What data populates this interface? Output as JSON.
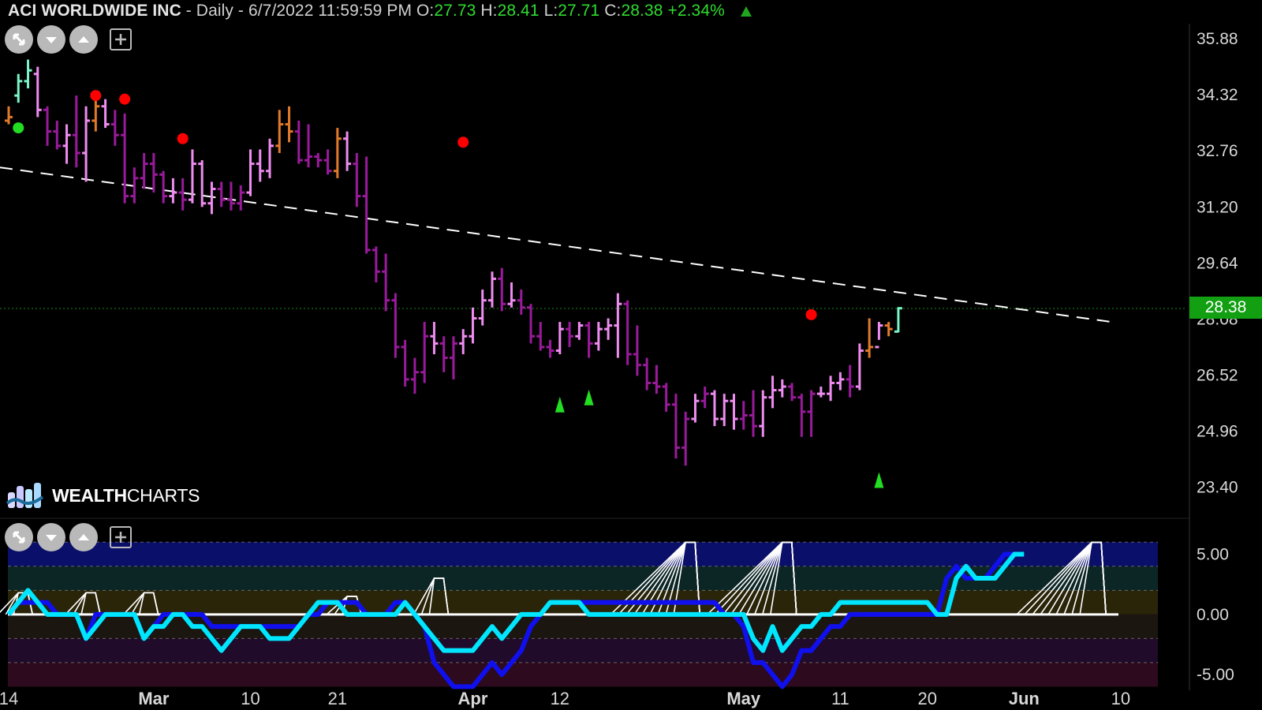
{
  "header": {
    "symbol": "ACI WORLDWIDE INC",
    "interval": "- Daily - 6/7/2022 11:59:59 PM",
    "open_label": "O:",
    "open": "27.73",
    "high_label": "H:",
    "high": "28.41",
    "low_label": "L:",
    "low": "27.71",
    "close_label": "C:",
    "close": "28.38",
    "change": "+2.34%"
  },
  "logo": {
    "text_bold": "WEALTH",
    "text_regular": "CHARTS"
  },
  "toolbar": {
    "icons": [
      "collapse-icon",
      "chevron-down-icon",
      "chevron-up-icon",
      "plus-icon"
    ]
  },
  "price_badge": "28.38",
  "colors": {
    "bar_magenta": "#9a1a9c",
    "bar_pink": "#ee8cf0",
    "bar_orange": "#e07a2a",
    "bar_teal": "#7af5c8",
    "trendline": "#ffffff",
    "osc_fast": "#00e6ff",
    "osc_slow": "#1010ee",
    "price_badge_bg": "#12a012",
    "signal_red": "#ff0000",
    "signal_green": "#22dd22"
  },
  "chart_data": [
    {
      "type": "ohlc",
      "title": "ACI WORLDWIDE INC - Daily",
      "y_ticks": [
        "35.88",
        "34.32",
        "32.76",
        "31.20",
        "29.64",
        "28.08",
        "26.52",
        "24.96",
        "23.40"
      ],
      "ylim": [
        22.6,
        36.3
      ],
      "x_ticks": [
        "14",
        "Mar",
        "10",
        "21",
        "Apr",
        "12",
        "May",
        "11",
        "20",
        "Jun",
        "10"
      ],
      "x_tick_index": [
        0,
        15,
        25,
        34,
        48,
        57,
        76,
        86,
        95,
        105,
        115
      ],
      "last_close": 28.38,
      "bars": [
        [
          33.6,
          34.0,
          33.5,
          33.7,
          "orange"
        ],
        [
          34.3,
          34.9,
          34.1,
          34.7,
          "teal"
        ],
        [
          34.7,
          35.3,
          34.5,
          35.0,
          "teal"
        ],
        [
          34.9,
          35.1,
          33.7,
          33.9,
          "pink"
        ],
        [
          33.9,
          34.0,
          32.9,
          33.3,
          "magenta"
        ],
        [
          33.3,
          33.6,
          32.8,
          32.9,
          "magenta"
        ],
        [
          32.9,
          33.5,
          32.4,
          33.2,
          "pink"
        ],
        [
          33.2,
          34.3,
          32.3,
          32.7,
          "magenta"
        ],
        [
          32.7,
          34.0,
          31.9,
          33.6,
          "pink"
        ],
        [
          33.6,
          34.3,
          33.3,
          34.0,
          "orange"
        ],
        [
          34.0,
          34.2,
          33.4,
          33.5,
          "pink"
        ],
        [
          33.5,
          33.9,
          32.9,
          33.2,
          "magenta"
        ],
        [
          33.2,
          33.8,
          31.3,
          31.5,
          "magenta"
        ],
        [
          31.5,
          32.3,
          31.3,
          32.0,
          "magenta"
        ],
        [
          32.0,
          32.7,
          31.7,
          32.4,
          "magenta"
        ],
        [
          32.4,
          32.7,
          31.6,
          32.1,
          "magenta"
        ],
        [
          32.1,
          32.2,
          31.3,
          31.5,
          "magenta"
        ],
        [
          31.5,
          32.0,
          31.3,
          31.6,
          "pink"
        ],
        [
          31.6,
          32.0,
          31.1,
          31.4,
          "magenta"
        ],
        [
          31.4,
          32.8,
          31.3,
          32.4,
          "pink"
        ],
        [
          32.4,
          32.5,
          31.2,
          31.3,
          "pink"
        ],
        [
          31.3,
          31.9,
          31.0,
          31.7,
          "pink"
        ],
        [
          31.7,
          31.9,
          31.2,
          31.4,
          "magenta"
        ],
        [
          31.4,
          31.9,
          31.1,
          31.3,
          "magenta"
        ],
        [
          31.3,
          31.8,
          31.1,
          31.6,
          "magenta"
        ],
        [
          31.6,
          32.8,
          31.5,
          32.4,
          "pink"
        ],
        [
          32.4,
          32.8,
          31.9,
          32.2,
          "pink"
        ],
        [
          32.2,
          33.1,
          32.0,
          32.9,
          "pink"
        ],
        [
          32.9,
          33.9,
          32.7,
          33.5,
          "orange"
        ],
        [
          33.5,
          34.0,
          33.0,
          33.3,
          "orange"
        ],
        [
          33.3,
          33.6,
          32.4,
          32.5,
          "magenta"
        ],
        [
          32.5,
          33.5,
          32.3,
          32.6,
          "magenta"
        ],
        [
          32.6,
          32.7,
          32.3,
          32.5,
          "magenta"
        ],
        [
          32.5,
          32.8,
          32.1,
          32.2,
          "magenta"
        ],
        [
          32.2,
          33.4,
          32.0,
          33.1,
          "orange"
        ],
        [
          33.1,
          33.3,
          32.2,
          32.4,
          "pink"
        ],
        [
          32.4,
          32.7,
          31.2,
          31.5,
          "magenta"
        ],
        [
          31.5,
          32.6,
          29.9,
          30.0,
          "magenta"
        ],
        [
          30.0,
          30.1,
          29.1,
          29.4,
          "magenta"
        ],
        [
          29.4,
          29.9,
          28.3,
          28.6,
          "magenta"
        ],
        [
          28.6,
          28.8,
          27.0,
          27.3,
          "magenta"
        ],
        [
          27.3,
          27.5,
          26.2,
          26.4,
          "magenta"
        ],
        [
          26.4,
          27.0,
          26.0,
          26.6,
          "magenta"
        ],
        [
          26.6,
          28.0,
          26.3,
          27.6,
          "magenta"
        ],
        [
          27.6,
          28.0,
          27.1,
          27.4,
          "pink"
        ],
        [
          27.4,
          27.6,
          26.6,
          27.0,
          "magenta"
        ],
        [
          27.0,
          27.6,
          26.4,
          27.4,
          "magenta"
        ],
        [
          27.4,
          27.8,
          27.1,
          27.6,
          "pink"
        ],
        [
          27.6,
          28.4,
          27.4,
          28.1,
          "pink"
        ],
        [
          28.1,
          28.9,
          27.9,
          28.6,
          "pink"
        ],
        [
          28.6,
          29.4,
          28.4,
          29.2,
          "pink"
        ],
        [
          29.2,
          29.5,
          28.3,
          28.5,
          "magenta"
        ],
        [
          28.5,
          29.1,
          28.4,
          28.6,
          "pink"
        ],
        [
          28.6,
          28.9,
          28.2,
          28.4,
          "magenta"
        ],
        [
          28.4,
          28.5,
          27.4,
          27.6,
          "magenta"
        ],
        [
          27.6,
          28.0,
          27.2,
          27.3,
          "magenta"
        ],
        [
          27.3,
          27.5,
          27.0,
          27.2,
          "magenta"
        ],
        [
          27.2,
          28.0,
          27.1,
          27.8,
          "pink"
        ],
        [
          27.8,
          28.0,
          27.3,
          27.6,
          "magenta"
        ],
        [
          27.6,
          28.0,
          27.5,
          27.9,
          "pink"
        ],
        [
          27.9,
          28.0,
          27.0,
          27.4,
          "magenta"
        ],
        [
          27.4,
          28.0,
          27.2,
          27.8,
          "pink"
        ],
        [
          27.8,
          28.1,
          27.5,
          27.9,
          "pink"
        ],
        [
          27.9,
          28.8,
          27.0,
          28.5,
          "pink"
        ],
        [
          28.5,
          28.6,
          26.8,
          27.1,
          "magenta"
        ],
        [
          27.1,
          27.9,
          26.5,
          26.8,
          "magenta"
        ],
        [
          26.8,
          27.0,
          26.1,
          26.3,
          "magenta"
        ],
        [
          26.3,
          26.8,
          26.0,
          26.2,
          "magenta"
        ],
        [
          26.2,
          26.3,
          25.5,
          25.7,
          "magenta"
        ],
        [
          25.7,
          26.0,
          24.2,
          24.5,
          "magenta"
        ],
        [
          24.5,
          25.5,
          24.0,
          25.3,
          "magenta"
        ],
        [
          25.3,
          26.0,
          25.2,
          25.8,
          "pink"
        ],
        [
          25.8,
          26.2,
          25.6,
          26.0,
          "magenta"
        ],
        [
          26.0,
          26.1,
          25.1,
          25.3,
          "pink"
        ],
        [
          25.3,
          26.0,
          25.1,
          25.8,
          "pink"
        ],
        [
          25.8,
          26.0,
          25.0,
          25.3,
          "pink"
        ],
        [
          25.3,
          25.8,
          25.0,
          25.4,
          "magenta"
        ],
        [
          25.4,
          26.1,
          24.8,
          25.1,
          "magenta"
        ],
        [
          25.1,
          26.1,
          24.8,
          25.9,
          "pink"
        ],
        [
          25.9,
          26.5,
          25.6,
          26.1,
          "pink"
        ],
        [
          26.1,
          26.4,
          25.9,
          26.2,
          "pink"
        ],
        [
          26.2,
          26.3,
          25.8,
          25.9,
          "magenta"
        ],
        [
          25.9,
          26.0,
          24.8,
          25.5,
          "magenta"
        ],
        [
          25.5,
          26.1,
          24.8,
          26.0,
          "magenta"
        ],
        [
          26.0,
          26.2,
          25.9,
          26.0,
          "pink"
        ],
        [
          26.0,
          26.5,
          25.8,
          26.3,
          "pink"
        ],
        [
          26.3,
          26.6,
          26.1,
          26.4,
          "pink"
        ],
        [
          26.4,
          26.8,
          25.9,
          26.2,
          "magenta"
        ],
        [
          26.2,
          27.4,
          26.1,
          27.2,
          "pink"
        ],
        [
          27.2,
          28.1,
          27.0,
          27.3,
          "orange"
        ],
        [
          27.3,
          28.0,
          27.5,
          27.9,
          "pink"
        ],
        [
          27.9,
          28.0,
          27.6,
          27.8,
          "orange"
        ],
        [
          27.73,
          28.41,
          27.71,
          28.38,
          "teal"
        ]
      ],
      "sell_signals": [
        {
          "bar": 9,
          "price": 34.3
        },
        {
          "bar": 12,
          "price": 34.2
        },
        {
          "bar": 18,
          "price": 33.1
        },
        {
          "bar": 47,
          "price": 33.0
        },
        {
          "bar": 83,
          "price": 28.2
        }
      ],
      "buy_signals": [
        {
          "bar": 1,
          "price": 33.4
        },
        {
          "bar": 57,
          "price": 25.7
        },
        {
          "bar": 60,
          "price": 25.9
        },
        {
          "bar": 90,
          "price": 23.6
        }
      ],
      "trendline": {
        "style": "dashed",
        "start": [
          0,
          32.3
        ],
        "end": [
          114,
          28.0
        ]
      }
    },
    {
      "type": "line",
      "title": "Oscillator",
      "y_ticks": [
        "5.00",
        "0.00",
        "-5.00"
      ],
      "ylim": [
        -6.3,
        7.0
      ],
      "bands": [
        {
          "from": 4.0,
          "to": 6.0,
          "color": "#0a0f6a"
        },
        {
          "from": 2.0,
          "to": 4.0,
          "color": "#0c2525"
        },
        {
          "from": 0.0,
          "to": 2.0,
          "color": "#2a2409"
        },
        {
          "from": -2.0,
          "to": 0.0,
          "color": "#1b1610"
        },
        {
          "from": -4.0,
          "to": -2.0,
          "color": "#200b2a"
        },
        {
          "from": -6.0,
          "to": -4.0,
          "color": "#2d0a1d"
        }
      ],
      "zero_line": 0,
      "series": [
        {
          "name": "fast",
          "values": [
            0,
            1,
            2,
            1,
            0,
            0,
            0,
            0,
            -2,
            -1,
            0,
            0,
            0,
            0,
            -2,
            -1,
            -1,
            0,
            0,
            -1,
            -1,
            -2,
            -3,
            -2,
            -1,
            -1,
            -1,
            -2,
            -2,
            -2,
            -1,
            0,
            1,
            1,
            1,
            0,
            0,
            0,
            0,
            0,
            0,
            1,
            0,
            -1,
            -2,
            -3,
            -3,
            -3,
            -3,
            -2,
            -1,
            -2,
            -1,
            0,
            0,
            0,
            1,
            1,
            1,
            1,
            0,
            0,
            0,
            0,
            0,
            0,
            0,
            0,
            0,
            0,
            0,
            0,
            0,
            0,
            0,
            0,
            0,
            -2,
            -3,
            -1,
            -3,
            -2,
            -1,
            -1,
            0,
            0,
            1,
            1,
            1,
            1,
            1,
            1,
            1,
            1,
            1,
            1,
            0,
            0,
            3,
            4,
            3,
            3,
            3,
            4,
            5,
            5
          ]
        },
        {
          "name": "slow",
          "values": [
            0,
            1,
            1,
            1,
            1,
            0,
            0,
            0,
            -2,
            0,
            0,
            0,
            0,
            0,
            -2,
            -1,
            0,
            0,
            0,
            0,
            0,
            -1,
            -1,
            -1,
            -1,
            -1,
            -1,
            -1,
            -1,
            -1,
            -1,
            0,
            0,
            1,
            1,
            1,
            1,
            0,
            0,
            0,
            1,
            1,
            0,
            -1,
            -4,
            -5,
            -6,
            -6,
            -6,
            -5,
            -4,
            -5,
            -4,
            -3,
            -1,
            0,
            1,
            1,
            1,
            1,
            1,
            1,
            1,
            1,
            1,
            1,
            1,
            1,
            1,
            1,
            1,
            1,
            1,
            1,
            0,
            0,
            -1,
            -4,
            -4,
            -5,
            -6,
            -5,
            -3,
            -3,
            -2,
            -1,
            -1,
            0,
            0,
            0,
            0,
            0,
            0,
            0,
            0,
            0,
            0,
            3,
            4,
            3,
            3,
            3,
            4,
            5,
            5
          ]
        }
      ],
      "cloud_peaks": [
        {
          "bar": 1,
          "value": 1.8
        },
        {
          "bar": 8,
          "value": 1.8
        },
        {
          "bar": 14,
          "value": 1.8
        },
        {
          "bar": 35,
          "value": 1.5
        },
        {
          "bar": 44,
          "value": 3.0
        },
        {
          "bar": 70,
          "value": 6.0
        },
        {
          "bar": 80,
          "value": 6.0
        },
        {
          "bar": 112,
          "value": 6.0
        }
      ]
    }
  ]
}
